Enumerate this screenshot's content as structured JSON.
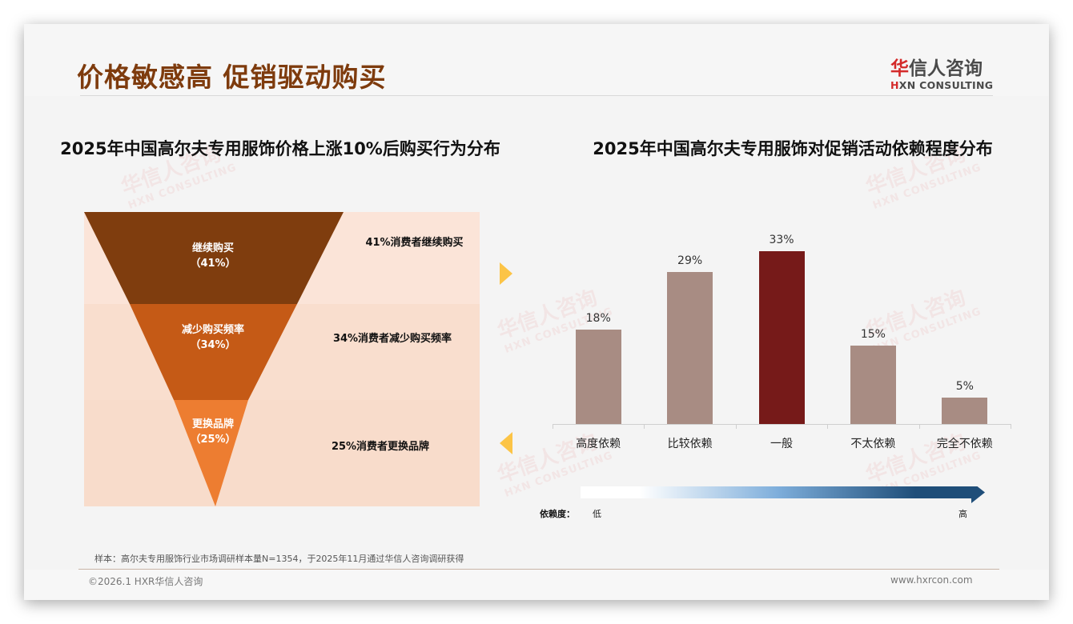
{
  "header": {
    "title": "价格敏感高 促销驱动购买",
    "logo": {
      "cn_first": "华",
      "cn_rest": "信人咨询",
      "en_first": "H",
      "en_rest": "XN CONSULTING"
    }
  },
  "watermark": {
    "cn": "华信人咨询",
    "en": "HXN CONSULTING"
  },
  "left_panel": {
    "title": "2025年中国高尔夫专用服饰价格上涨10%后购买行为分布",
    "funnel": [
      {
        "label": "继续购买",
        "value": "（41%）",
        "description": "41%消费者继续购买",
        "color": "#7f3d0e"
      },
      {
        "label": "减少购买频率",
        "value": "（34%）",
        "description": "34%消费者减少购买频率",
        "color": "#c55a16"
      },
      {
        "label": "更换品牌",
        "value": "（25%）",
        "description": "25%消费者更换品牌",
        "color": "#ed7d31"
      }
    ]
  },
  "right_panel": {
    "title": "2025年中国高尔夫专用服饰对促销活动依赖程度分布",
    "legend": {
      "key": "依赖度：",
      "low": "低",
      "high": "高"
    }
  },
  "colors": {
    "bar_default": "#a88c83",
    "bar_highlight": "#761a19",
    "chevron": "#fcc446",
    "title": "#7e3b0d"
  },
  "chart_data": [
    {
      "type": "funnel",
      "title": "2025年中国高尔夫专用服饰价格上涨10%后购买行为分布",
      "categories": [
        "继续购买",
        "减少购买频率",
        "更换品牌"
      ],
      "values": [
        41,
        34,
        25
      ],
      "unit": "%"
    },
    {
      "type": "bar",
      "title": "2025年中国高尔夫专用服饰对促销活动依赖程度分布",
      "categories": [
        "高度依赖",
        "比较依赖",
        "一般",
        "不太依赖",
        "完全不依赖"
      ],
      "values": [
        18,
        29,
        33,
        15,
        5
      ],
      "labels": [
        "18%",
        "29%",
        "33%",
        "15%",
        "5%"
      ],
      "highlight_index": 2,
      "xlabel": "依赖度：低 → 高",
      "ylabel": "",
      "ylim": [
        0,
        35
      ],
      "grid": false
    }
  ],
  "footer": {
    "sample_note": "样本：高尔夫专用服饰行业市场调研样本量N=1354，于2025年11月通过华信人咨询调研获得",
    "copyright": "©2026.1 HXR华信人咨询",
    "website": "www.hxrcon.com"
  }
}
